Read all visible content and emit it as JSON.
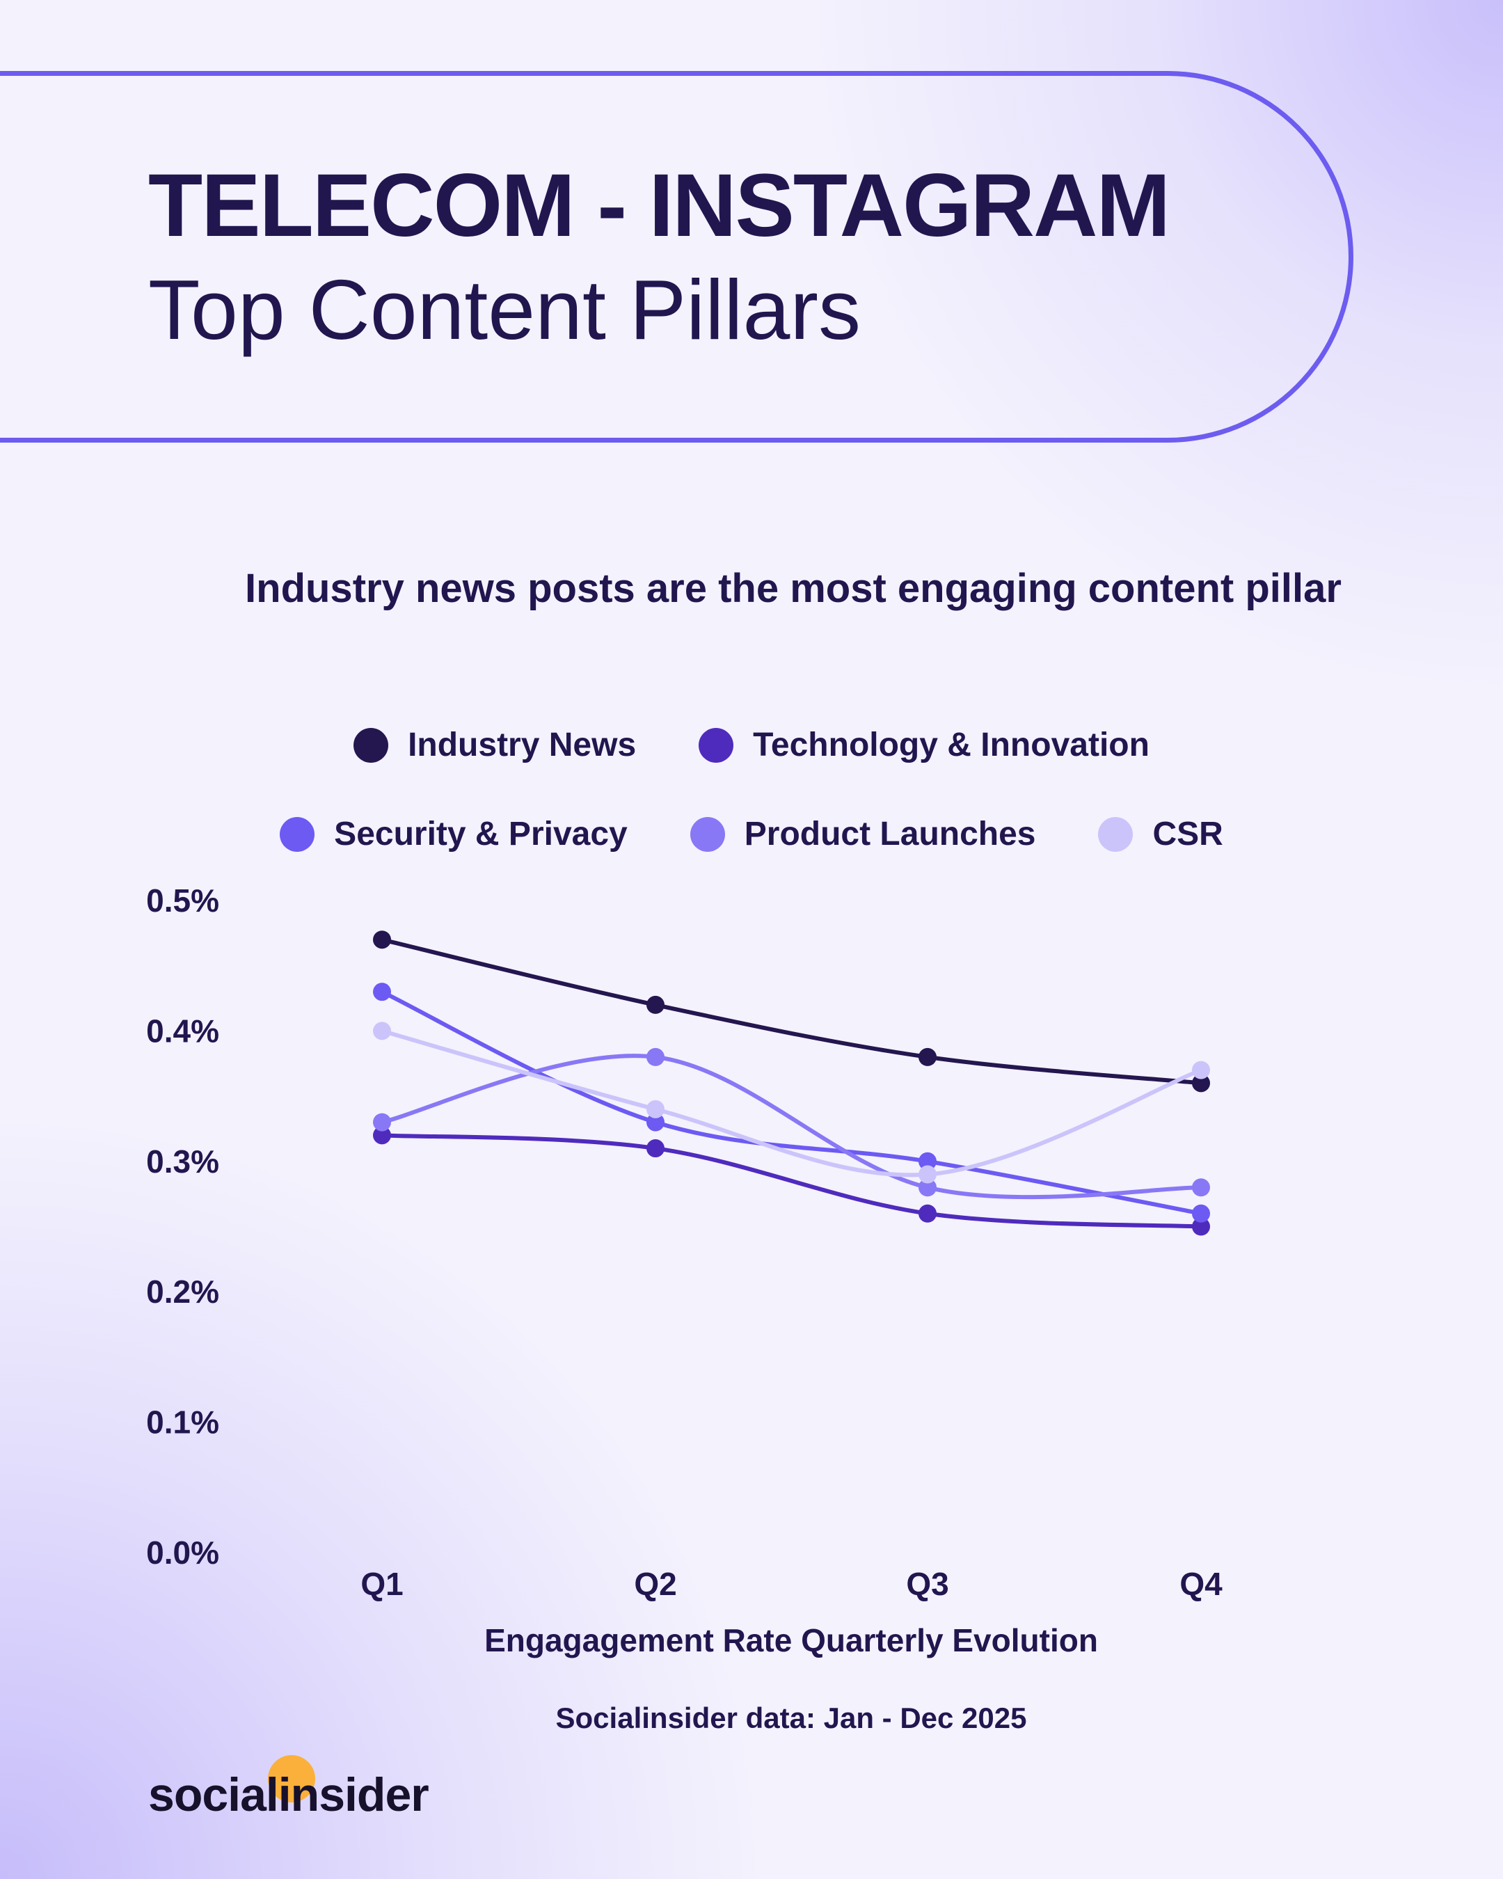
{
  "header": {
    "title": "TELECOM - INSTAGRAM",
    "subtitle": "Top Content Pillars"
  },
  "chart_data": {
    "type": "line",
    "title": "Industry news posts are the most engaging content pillar",
    "xlabel": "Engagagement Rate Quarterly Evolution",
    "ylabel": "",
    "categories": [
      "Q1",
      "Q2",
      "Q3",
      "Q4"
    ],
    "yticks": [
      "0.0%",
      "0.1%",
      "0.2%",
      "0.3%",
      "0.4%",
      "0.5%"
    ],
    "ylim": [
      0,
      0.5
    ],
    "grid": false,
    "legend_placement": "top",
    "series": [
      {
        "name": "Industry News",
        "color": "#24164f",
        "values": [
          0.47,
          0.42,
          0.38,
          0.36
        ]
      },
      {
        "name": "Technology & Innovation",
        "color": "#4f2bbd",
        "values": [
          0.32,
          0.31,
          0.26,
          0.25
        ]
      },
      {
        "name": "Security & Privacy",
        "color": "#6c5af3",
        "values": [
          0.43,
          0.33,
          0.3,
          0.26
        ]
      },
      {
        "name": "Product Launches",
        "color": "#8878f5",
        "values": [
          0.33,
          0.38,
          0.28,
          0.28
        ]
      },
      {
        "name": "CSR",
        "color": "#cbc4fb",
        "values": [
          0.4,
          0.34,
          0.29,
          0.37
        ]
      }
    ]
  },
  "footer": {
    "source": "Socialinsider data: Jan - Dec 2025",
    "logo": "socialinsider",
    "logo_accent": "#fbb03b"
  }
}
